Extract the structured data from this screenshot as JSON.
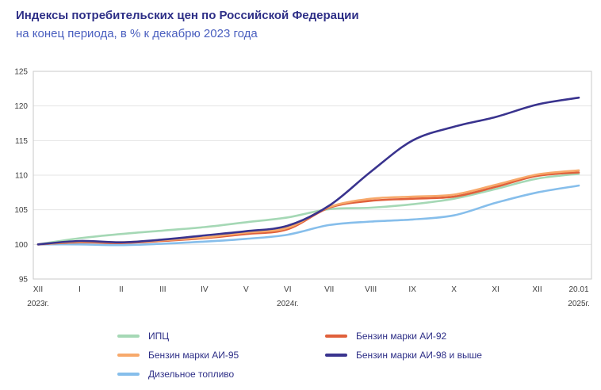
{
  "header": {
    "title": "Индексы потребительских цен по Российской Федерации",
    "subtitle": "на конец периода, в % к декабрю 2023 года"
  },
  "chart_data": {
    "type": "line",
    "title": "Индексы потребительских цен по Российской Федерации",
    "subtitle": "на конец периода, в % к декабрю 2023 года",
    "x_labels": [
      "XII",
      "I",
      "II",
      "III",
      "IV",
      "V",
      "VI",
      "VII",
      "VIII",
      "IX",
      "X",
      "XI",
      "XII",
      "20.01"
    ],
    "year_labels": [
      {
        "label": "2023г.",
        "index": 0
      },
      {
        "label": "2024г.",
        "index": 6
      },
      {
        "label": "2025г.",
        "index": 13
      }
    ],
    "ylim": [
      95,
      125
    ],
    "yticks": [
      95,
      100,
      105,
      110,
      115,
      120,
      125
    ],
    "grid": true,
    "legend_position": "bottom",
    "series": [
      {
        "name": "ИПЦ",
        "color": "#A5D8B5",
        "values": [
          100,
          100.9,
          101.5,
          102.0,
          102.5,
          103.2,
          103.9,
          105.1,
          105.3,
          105.8,
          106.6,
          108.0,
          109.5,
          110.2
        ]
      },
      {
        "name": "Бензин марки АИ-92",
        "color": "#E0603B",
        "values": [
          100,
          100.3,
          100.2,
          100.5,
          100.9,
          101.5,
          102.2,
          105.3,
          106.3,
          106.6,
          106.9,
          108.3,
          109.9,
          110.4
        ]
      },
      {
        "name": "Бензин марки АИ-95",
        "color": "#F7A96B",
        "values": [
          100,
          100.4,
          100.3,
          100.6,
          101.0,
          101.7,
          102.4,
          105.4,
          106.6,
          106.9,
          107.2,
          108.6,
          110.1,
          110.7
        ]
      },
      {
        "name": "Бензин марки АИ-98 и выше",
        "color": "#39338E",
        "values": [
          100,
          100.5,
          100.3,
          100.7,
          101.3,
          101.9,
          102.7,
          105.6,
          110.5,
          115.0,
          117.0,
          118.4,
          120.2,
          121.2
        ]
      },
      {
        "name": "Дизельное топливо",
        "color": "#86BEEB",
        "values": [
          100,
          100.0,
          99.9,
          100.1,
          100.4,
          100.8,
          101.4,
          102.8,
          103.3,
          103.6,
          104.2,
          106.0,
          107.5,
          108.5
        ]
      }
    ]
  },
  "style": {
    "title_color": "#2E2F87",
    "subtitle_color": "#4A5FBF",
    "axis_label_color": "#3C3C3C",
    "grid_color": "#E4E4E4",
    "border_color": "#C9C9C9",
    "legend_text_color": "#2E2F87"
  }
}
